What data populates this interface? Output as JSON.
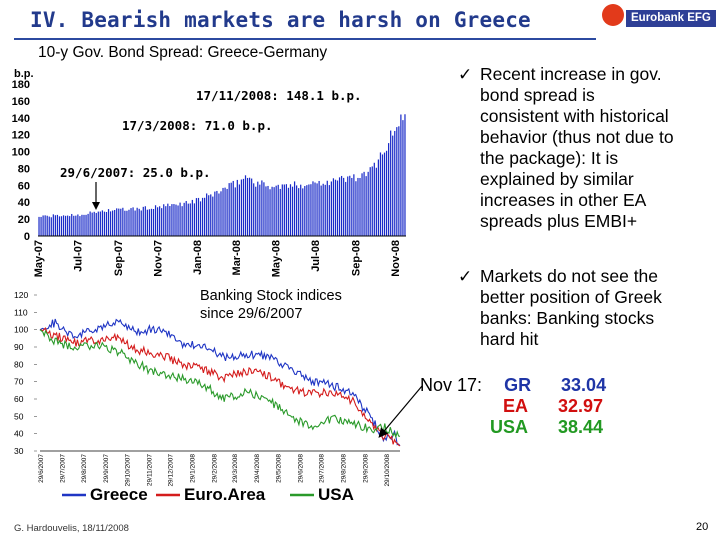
{
  "slide": {
    "title": "IV.  Bearish markets are harsh on Greece",
    "footer": "G. Hardouvelis, 18/11/2008",
    "page_number": "20",
    "logo_text": "Eurobank EFG",
    "banking_label": [
      "Banking Stock indices",
      "since 29/6/2007"
    ]
  },
  "bullets": [
    {
      "icon": "check-icon",
      "lines": [
        "Recent increase in gov.",
        "bond  spread is",
        "consistent with historical",
        "behavior (thus not due to",
        "the package): It is",
        "explained by similar",
        "increases in other EA",
        "spreads plus EMBI+"
      ]
    },
    {
      "icon": "check-icon",
      "lines": [
        "Markets do not see the",
        "better position of Greek",
        "banks:  Banking stocks",
        "hard hit"
      ]
    }
  ],
  "nov17": {
    "label": "Nov 17:",
    "rows": [
      {
        "name": "GR",
        "value": "33.04",
        "color": "#1f35a6"
      },
      {
        "name": "EA",
        "value": "32.97",
        "color": "#d10f0f"
      },
      {
        "name": "USA",
        "value": "38.44",
        "color": "#229922"
      }
    ]
  },
  "chart_data": [
    {
      "type": "bar",
      "title": "10-y Gov. Bond Spread: Greece-Germany",
      "ylabel": "b.p.",
      "ylim": [
        0,
        180
      ],
      "yticks": [
        "0",
        "20",
        "40",
        "60",
        "80",
        "100",
        "120",
        "140",
        "160",
        "180"
      ],
      "xticks": [
        "May-07",
        "Jul-07",
        "Sep-07",
        "Nov-07",
        "Jan-08",
        "Mar-08",
        "May-08",
        "Jul-08",
        "Sep-08",
        "Nov-08"
      ],
      "color": "#1a2bc8",
      "x_range": [
        "2007-05-01",
        "2008-11-18"
      ],
      "points": [
        [
          "2007-05-01",
          23
        ],
        [
          "2007-06-01",
          24
        ],
        [
          "2007-06-29",
          25
        ],
        [
          "2007-07-20",
          27
        ],
        [
          "2007-08-10",
          30
        ],
        [
          "2007-09-01",
          31
        ],
        [
          "2007-10-01",
          32
        ],
        [
          "2007-11-01",
          34
        ],
        [
          "2007-12-01",
          37
        ],
        [
          "2008-01-01",
          42
        ],
        [
          "2008-01-20",
          48
        ],
        [
          "2008-02-10",
          55
        ],
        [
          "2008-03-01",
          62
        ],
        [
          "2008-03-17",
          71
        ],
        [
          "2008-04-01",
          63
        ],
        [
          "2008-05-01",
          58
        ],
        [
          "2008-06-01",
          60
        ],
        [
          "2008-07-01",
          63
        ],
        [
          "2008-08-01",
          66
        ],
        [
          "2008-09-01",
          70
        ],
        [
          "2008-09-20",
          72
        ],
        [
          "2008-10-01",
          85
        ],
        [
          "2008-10-15",
          102
        ],
        [
          "2008-10-30",
          122
        ],
        [
          "2008-11-10",
          140
        ],
        [
          "2008-11-17",
          148.1
        ],
        [
          "2008-11-18",
          145
        ]
      ],
      "annotations": [
        {
          "text": "17/11/2008: 148.1 b.p."
        },
        {
          "text": "17/3/2008: 71.0 b.p."
        },
        {
          "text": "29/6/2007: 25.0 b.p."
        }
      ]
    },
    {
      "type": "line",
      "title": "Banking Stock indices since 29/6/2007",
      "ylim": [
        30,
        120
      ],
      "yticks": [
        "30",
        "40",
        "50",
        "60",
        "70",
        "80",
        "90",
        "100",
        "110",
        "120"
      ],
      "xticks": [
        "29/6/2007",
        "29/7/2007",
        "29/8/2007",
        "29/9/2007",
        "29/10/2007",
        "29/11/2007",
        "29/12/2007",
        "29/1/2008",
        "29/2/2008",
        "29/3/2008",
        "29/4/2008",
        "29/5/2008",
        "29/6/2008",
        "29/7/2008",
        "29/8/2008",
        "29/9/2008",
        "29/10/2008"
      ],
      "x_range": [
        "2007-06-29",
        "2008-11-18"
      ],
      "series": [
        {
          "name": "Greece",
          "color": "#1f35c4",
          "points": [
            [
              "2007-06-29",
              100
            ],
            [
              "2007-07-20",
              104
            ],
            [
              "2007-08-15",
              96
            ],
            [
              "2007-09-15",
              100
            ],
            [
              "2007-10-15",
              104
            ],
            [
              "2007-11-15",
              99
            ],
            [
              "2007-12-15",
              101
            ],
            [
              "2008-01-15",
              92
            ],
            [
              "2008-02-15",
              90
            ],
            [
              "2008-03-15",
              84
            ],
            [
              "2008-04-15",
              86
            ],
            [
              "2008-05-15",
              85
            ],
            [
              "2008-06-15",
              78
            ],
            [
              "2008-07-15",
              70
            ],
            [
              "2008-08-15",
              68
            ],
            [
              "2008-09-15",
              62
            ],
            [
              "2008-10-10",
              48
            ],
            [
              "2008-10-28",
              36
            ],
            [
              "2008-11-10",
              40
            ],
            [
              "2008-11-17",
              33.04
            ]
          ]
        },
        {
          "name": "Euro.Area",
          "color": "#d41c1c",
          "points": [
            [
              "2007-06-29",
              100
            ],
            [
              "2007-07-20",
              97
            ],
            [
              "2007-08-15",
              92
            ],
            [
              "2007-09-15",
              94
            ],
            [
              "2007-10-15",
              95
            ],
            [
              "2007-11-15",
              88
            ],
            [
              "2007-12-15",
              86
            ],
            [
              "2008-01-15",
              80
            ],
            [
              "2008-02-15",
              77
            ],
            [
              "2008-03-15",
              72
            ],
            [
              "2008-04-15",
              76
            ],
            [
              "2008-05-15",
              74
            ],
            [
              "2008-06-15",
              66
            ],
            [
              "2008-07-15",
              63
            ],
            [
              "2008-08-15",
              64
            ],
            [
              "2008-09-15",
              58
            ],
            [
              "2008-10-10",
              44
            ],
            [
              "2008-10-28",
              38
            ],
            [
              "2008-11-10",
              36
            ],
            [
              "2008-11-17",
              32.97
            ]
          ]
        },
        {
          "name": "USA",
          "color": "#2a9a2a",
          "points": [
            [
              "2007-06-29",
              100
            ],
            [
              "2007-07-20",
              93
            ],
            [
              "2007-08-15",
              90
            ],
            [
              "2007-09-15",
              91
            ],
            [
              "2007-10-15",
              88
            ],
            [
              "2007-11-15",
              80
            ],
            [
              "2007-12-15",
              74
            ],
            [
              "2008-01-15",
              72
            ],
            [
              "2008-02-15",
              68
            ],
            [
              "2008-03-15",
              60
            ],
            [
              "2008-04-15",
              64
            ],
            [
              "2008-05-15",
              60
            ],
            [
              "2008-06-15",
              50
            ],
            [
              "2008-07-15",
              44
            ],
            [
              "2008-08-15",
              49
            ],
            [
              "2008-09-15",
              46
            ],
            [
              "2008-10-10",
              42
            ],
            [
              "2008-10-28",
              44
            ],
            [
              "2008-11-10",
              40
            ],
            [
              "2008-11-17",
              38.44
            ]
          ]
        }
      ]
    }
  ]
}
